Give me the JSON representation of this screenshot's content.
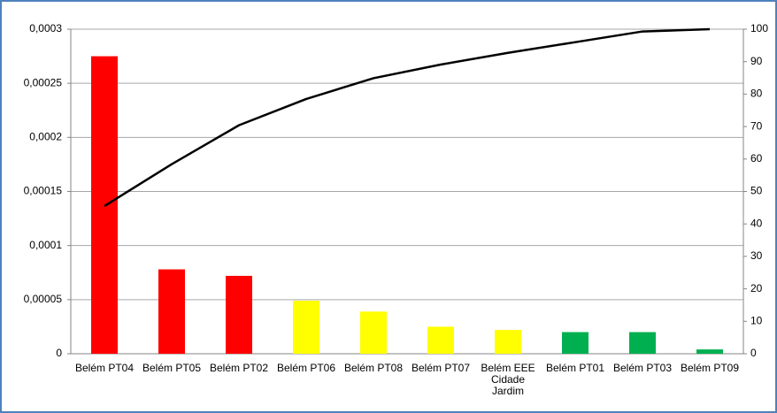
{
  "chart_data": {
    "type": "pareto",
    "categories": [
      "Belém PT04",
      "Belém PT05",
      "Belém PT02",
      "Belém PT06",
      "Belém PT08",
      "Belém PT07",
      "Belém EEE Cidade Jardim",
      "Belém PT01",
      "Belém PT03",
      "Belém PT09"
    ],
    "series": [
      {
        "type": "bar",
        "colors": [
          "#ff0000",
          "#ff0000",
          "#ff0000",
          "#ffff00",
          "#ffff00",
          "#ffff00",
          "#ffff00",
          "#00b050",
          "#00b050",
          "#00b050"
        ],
        "values": [
          0.000275,
          7.8e-05,
          7.2e-05,
          4.9e-05,
          3.9e-05,
          2.5e-05,
          2.2e-05,
          2e-05,
          2e-05,
          4e-06
        ]
      },
      {
        "type": "line",
        "axis": "y2",
        "color": "#000000",
        "values": [
          45.5,
          58.4,
          70.4,
          78.5,
          84.9,
          89.1,
          92.7,
          96,
          99.3,
          100
        ]
      }
    ],
    "ylim": [
      0,
      0.0003
    ],
    "yticks": [
      0,
      {
        "value": 5e-05,
        "label": "0,00005"
      },
      {
        "value": 0.0001,
        "label": "0,0001"
      },
      {
        "value": 0.00015,
        "label": "0,00015"
      },
      {
        "value": 0.0002,
        "label": "0,0002"
      },
      {
        "value": 0.00025,
        "label": "0,00025"
      },
      {
        "value": 0.0003,
        "label": "0,0003"
      }
    ],
    "y2lim": [
      0,
      100
    ],
    "y2ticks": [
      0,
      10,
      20,
      30,
      40,
      50,
      60,
      70,
      80,
      90,
      100
    ],
    "grid": true
  }
}
